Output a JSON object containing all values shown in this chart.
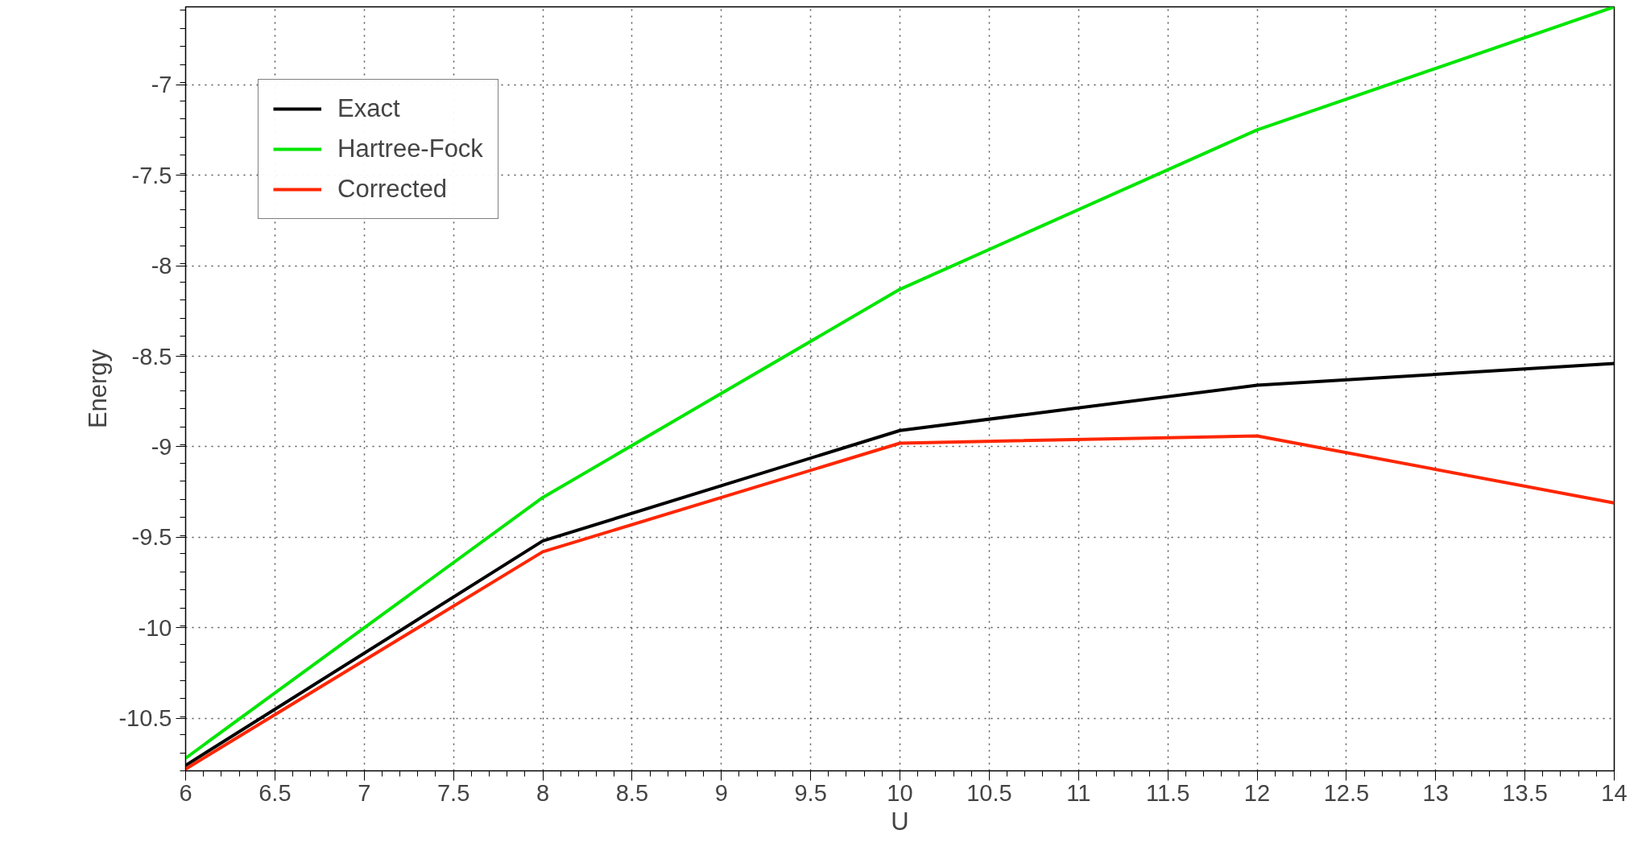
{
  "chart_data": {
    "type": "line",
    "xlabel": "U",
    "ylabel": "Energy",
    "x": [
      6,
      8,
      10,
      12,
      14
    ],
    "series": [
      {
        "name": "Exact",
        "color": "#000000",
        "values": [
          -10.76,
          -9.52,
          -8.91,
          -8.66,
          -8.54
        ]
      },
      {
        "name": "Hartree-Fock",
        "color": "#00e600",
        "values": [
          -10.72,
          -9.28,
          -8.13,
          -7.25,
          -6.57
        ]
      },
      {
        "name": "Corrected",
        "color": "#ff2600",
        "values": [
          -10.78,
          -9.58,
          -8.98,
          -8.94,
          -9.31
        ]
      }
    ],
    "xlim": [
      6,
      14
    ],
    "ylim": [
      -10.79,
      -6.57
    ],
    "xticks": [
      6,
      6.5,
      7,
      7.5,
      8,
      8.5,
      9,
      9.5,
      10,
      10.5,
      11,
      11.5,
      12,
      12.5,
      13,
      13.5,
      14
    ],
    "yticks": [
      -10.5,
      -10,
      -9.5,
      -9,
      -8.5,
      -8,
      -7.5,
      -7
    ],
    "grid": true,
    "legend": "top left",
    "marker": "none",
    "line_style": "solid"
  }
}
